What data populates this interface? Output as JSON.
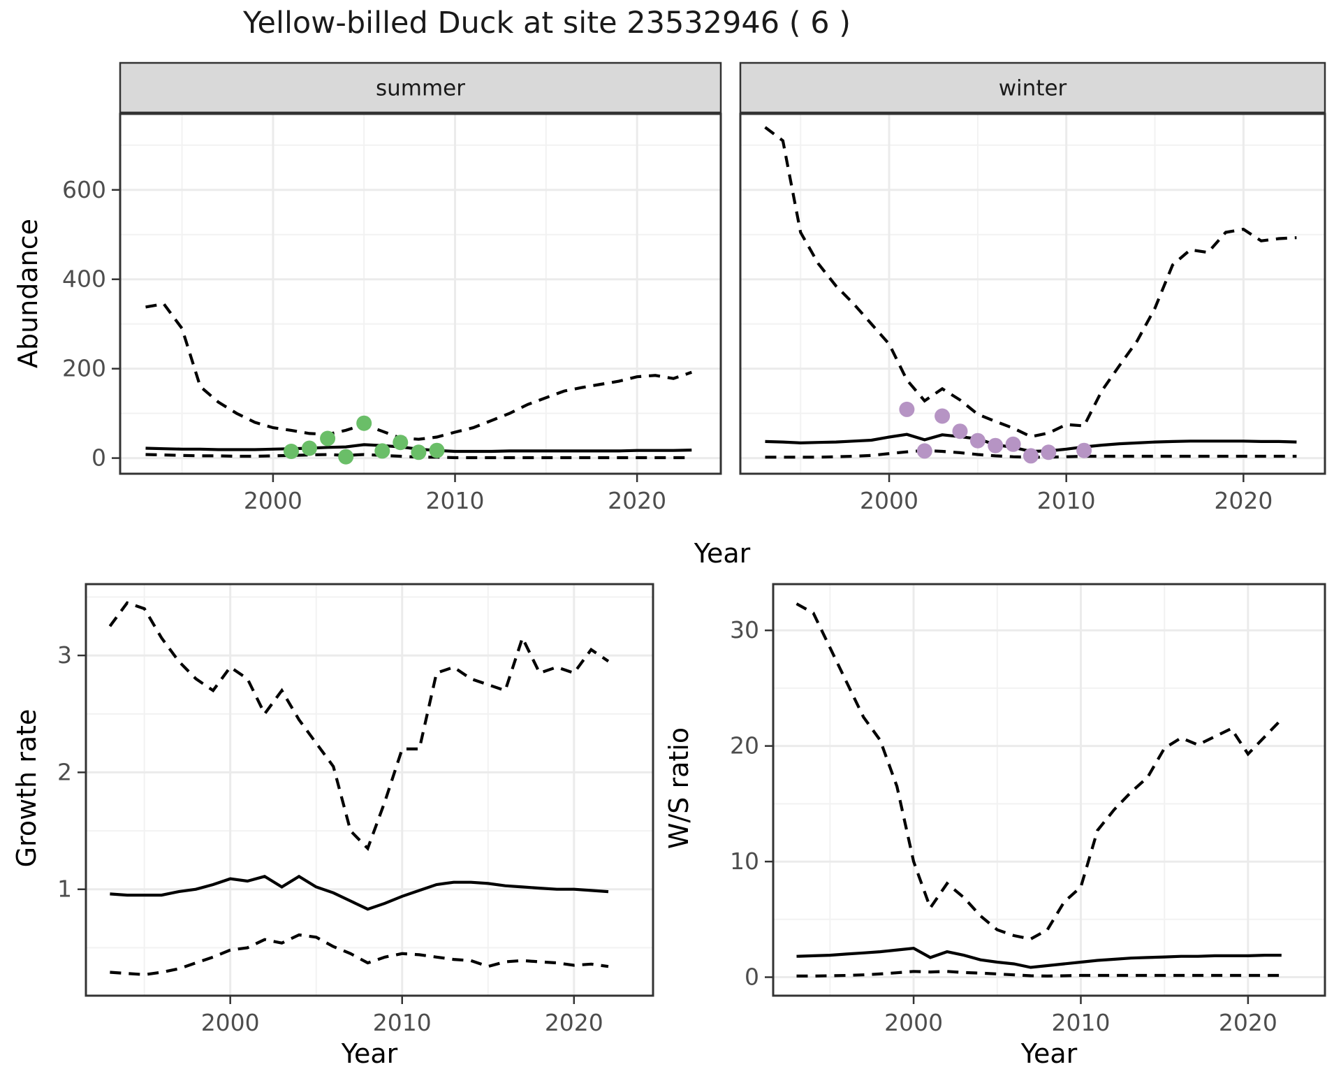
{
  "title": "Yellow-billed Duck at site 23532946 ( 6 )",
  "axis_titles": {
    "abundance_y": "Abundance",
    "top_x": "Year",
    "growth_y": "Growth rate",
    "growth_x": "Year",
    "ws_y": "W/S ratio",
    "ws_x": "Year"
  },
  "colors": {
    "summer_points": "#6ABE68",
    "winter_points": "#B694C4",
    "line": "#000000",
    "grid_major": "#EBEBEB",
    "grid_minor": "#F2F2F2",
    "panel_border": "#333333",
    "strip_fill": "#D9D9D9",
    "strip_text": "#1A1A1A",
    "tick_text": "#4D4D4D",
    "background": "#FFFFFF"
  },
  "chart_data": [
    {
      "id": "abundance-summer",
      "type": "line",
      "facet_label": "summer",
      "ylabel": "Abundance",
      "xlabel": "Year",
      "x_range": [
        1991.6,
        2024.6
      ],
      "y_range": [
        -35,
        770
      ],
      "x_ticks": [
        2000,
        2010,
        2020
      ],
      "x_minor": [
        1995,
        2005,
        2015
      ],
      "y_ticks": [
        0,
        200,
        400,
        600
      ],
      "y_minor": [
        100,
        300,
        500,
        700
      ],
      "show_y_labels": true,
      "years": [
        1993,
        1994,
        1995,
        1996,
        1997,
        1998,
        1999,
        2000,
        2001,
        2002,
        2003,
        2004,
        2005,
        2006,
        2007,
        2008,
        2009,
        2010,
        2011,
        2012,
        2013,
        2014,
        2015,
        2016,
        2017,
        2018,
        2019,
        2020,
        2021,
        2022,
        2023
      ],
      "series": [
        {
          "name": "upper-ci",
          "style": "dashed",
          "values": [
            338,
            345,
            290,
            160,
            125,
            100,
            80,
            68,
            62,
            55,
            53,
            62,
            75,
            60,
            45,
            42,
            47,
            58,
            68,
            84,
            100,
            120,
            135,
            150,
            158,
            165,
            172,
            182,
            185,
            178,
            192
          ]
        },
        {
          "name": "lower-ci",
          "style": "dashed",
          "values": [
            8,
            7,
            6,
            5,
            5,
            4,
            4,
            5,
            6,
            7,
            8,
            6,
            8,
            6,
            4,
            2,
            2,
            1,
            1,
            1,
            1,
            1,
            1,
            1,
            1,
            1,
            1,
            1,
            1,
            1,
            1
          ]
        },
        {
          "name": "median",
          "style": "solid",
          "values": [
            22,
            21,
            20,
            20,
            19,
            19,
            19,
            20,
            21,
            22,
            24,
            25,
            30,
            28,
            25,
            20,
            17,
            15,
            15,
            15,
            16,
            16,
            16,
            16,
            16,
            16,
            16,
            17,
            17,
            17,
            18
          ]
        }
      ],
      "points": {
        "name": "observed-summer",
        "color_key": "summer_points",
        "years": [
          2001,
          2002,
          2003,
          2004,
          2005,
          2006,
          2007,
          2008,
          2009
        ],
        "values": [
          15,
          22,
          44,
          3,
          78,
          16,
          35,
          13,
          17
        ]
      }
    },
    {
      "id": "abundance-winter",
      "type": "line",
      "facet_label": "winter",
      "ylabel": "Abundance",
      "xlabel": "Year",
      "x_range": [
        1991.6,
        2024.6
      ],
      "y_range": [
        -35,
        770
      ],
      "x_ticks": [
        2000,
        2010,
        2020
      ],
      "x_minor": [
        1995,
        2005,
        2015
      ],
      "y_ticks": [
        0,
        200,
        400,
        600
      ],
      "y_minor": [
        100,
        300,
        500,
        700
      ],
      "show_y_labels": false,
      "years": [
        1993,
        1994,
        1995,
        1996,
        1997,
        1998,
        1999,
        2000,
        2001,
        2002,
        2003,
        2004,
        2005,
        2006,
        2007,
        2008,
        2009,
        2010,
        2011,
        2012,
        2013,
        2014,
        2015,
        2016,
        2017,
        2018,
        2019,
        2020,
        2021,
        2022,
        2023
      ],
      "series": [
        {
          "name": "upper-ci",
          "style": "dashed",
          "values": [
            740,
            710,
            505,
            435,
            385,
            345,
            300,
            255,
            175,
            128,
            155,
            130,
            98,
            82,
            67,
            48,
            56,
            75,
            72,
            150,
            207,
            262,
            335,
            432,
            466,
            460,
            505,
            512,
            486,
            491,
            493
          ]
        },
        {
          "name": "lower-ci",
          "style": "dashed",
          "values": [
            2,
            2,
            2,
            2,
            3,
            4,
            6,
            10,
            14,
            17,
            15,
            12,
            8,
            5,
            3,
            2,
            2,
            3,
            4,
            4,
            4,
            4,
            4,
            4,
            4,
            4,
            4,
            4,
            4,
            4,
            4
          ]
        },
        {
          "name": "median",
          "style": "solid",
          "values": [
            37,
            36,
            34,
            35,
            36,
            38,
            40,
            47,
            53,
            41,
            52,
            48,
            43,
            30,
            24,
            15,
            16,
            20,
            25,
            29,
            32,
            34,
            36,
            37,
            38,
            38,
            38,
            38,
            37,
            37,
            36
          ]
        }
      ],
      "points": {
        "name": "observed-winter",
        "color_key": "winter_points",
        "years": [
          2001,
          2002,
          2003,
          2004,
          2005,
          2006,
          2007,
          2008,
          2009,
          2011
        ],
        "values": [
          109,
          16,
          94,
          60,
          39,
          28,
          31,
          5,
          13,
          17
        ]
      }
    },
    {
      "id": "growth-rate",
      "type": "line",
      "facet_label": null,
      "ylabel": "Growth rate",
      "xlabel": "Year",
      "x_range": [
        1991.6,
        2024.6
      ],
      "y_range": [
        0.09,
        3.61
      ],
      "x_ticks": [
        2000,
        2010,
        2020
      ],
      "x_minor": [
        1995,
        2005,
        2015
      ],
      "y_ticks": [
        1,
        2,
        3
      ],
      "y_minor": [
        0.5,
        1.5,
        2.5,
        3.5
      ],
      "show_y_labels": true,
      "years": [
        1993,
        1994,
        1995,
        1996,
        1997,
        1998,
        1999,
        2000,
        2001,
        2002,
        2003,
        2004,
        2005,
        2006,
        2007,
        2008,
        2009,
        2010,
        2011,
        2012,
        2013,
        2014,
        2015,
        2016,
        2017,
        2018,
        2019,
        2020,
        2021,
        2022
      ],
      "series": [
        {
          "name": "upper-ci",
          "style": "dashed",
          "values": [
            3.25,
            3.45,
            3.4,
            3.15,
            2.95,
            2.8,
            2.7,
            2.9,
            2.8,
            2.5,
            2.7,
            2.45,
            2.25,
            2.05,
            1.5,
            1.35,
            1.75,
            2.2,
            2.2,
            2.85,
            2.9,
            2.8,
            2.75,
            2.7,
            3.15,
            2.85,
            2.9,
            2.85,
            3.05,
            2.95
          ]
        },
        {
          "name": "lower-ci",
          "style": "dashed",
          "values": [
            0.29,
            0.28,
            0.27,
            0.29,
            0.32,
            0.37,
            0.42,
            0.48,
            0.5,
            0.57,
            0.54,
            0.61,
            0.59,
            0.51,
            0.45,
            0.37,
            0.42,
            0.45,
            0.44,
            0.42,
            0.4,
            0.39,
            0.34,
            0.38,
            0.39,
            0.38,
            0.37,
            0.35,
            0.36,
            0.34
          ]
        },
        {
          "name": "median",
          "style": "solid",
          "values": [
            0.96,
            0.95,
            0.95,
            0.95,
            0.98,
            1.0,
            1.04,
            1.09,
            1.07,
            1.11,
            1.02,
            1.11,
            1.02,
            0.97,
            0.9,
            0.83,
            0.88,
            0.94,
            0.99,
            1.04,
            1.06,
            1.06,
            1.05,
            1.03,
            1.02,
            1.01,
            1.0,
            1.0,
            0.99,
            0.98
          ]
        }
      ],
      "points": null
    },
    {
      "id": "ws-ratio",
      "type": "line",
      "facet_label": null,
      "ylabel": "W/S ratio",
      "xlabel": "Year",
      "x_range": [
        1991.6,
        2024.6
      ],
      "y_range": [
        -1.6,
        34.0
      ],
      "x_ticks": [
        2000,
        2010,
        2020
      ],
      "x_minor": [
        1995,
        2005,
        2015
      ],
      "y_ticks": [
        0,
        10,
        20,
        30
      ],
      "y_minor": [
        5,
        15,
        25
      ],
      "show_y_labels": true,
      "years": [
        1993,
        1994,
        1995,
        1996,
        1997,
        1998,
        1999,
        2000,
        2001,
        2002,
        2003,
        2004,
        2005,
        2006,
        2007,
        2008,
        2009,
        2010,
        2011,
        2012,
        2013,
        2014,
        2015,
        2016,
        2017,
        2018,
        2019,
        2020,
        2021,
        2022
      ],
      "series": [
        {
          "name": "upper-ci",
          "style": "dashed",
          "values": [
            32.3,
            31.5,
            28.5,
            25.5,
            22.5,
            20.5,
            16.5,
            10.0,
            6.0,
            8.1,
            6.9,
            5.3,
            4.1,
            3.6,
            3.3,
            4.1,
            6.5,
            7.8,
            12.7,
            14.5,
            16.0,
            17.3,
            19.8,
            20.7,
            20.1,
            20.8,
            21.5,
            19.3,
            20.8,
            22.3
          ]
        },
        {
          "name": "lower-ci",
          "style": "dashed",
          "values": [
            0.1,
            0.1,
            0.12,
            0.15,
            0.2,
            0.28,
            0.38,
            0.5,
            0.45,
            0.5,
            0.4,
            0.35,
            0.28,
            0.2,
            0.12,
            0.1,
            0.12,
            0.15,
            0.15,
            0.15,
            0.15,
            0.15,
            0.15,
            0.15,
            0.15,
            0.15,
            0.15,
            0.15,
            0.15,
            0.15
          ]
        },
        {
          "name": "median",
          "style": "solid",
          "values": [
            1.8,
            1.85,
            1.9,
            2.0,
            2.1,
            2.2,
            2.35,
            2.5,
            1.7,
            2.2,
            1.9,
            1.5,
            1.3,
            1.15,
            0.85,
            1.0,
            1.15,
            1.3,
            1.45,
            1.55,
            1.65,
            1.7,
            1.75,
            1.8,
            1.8,
            1.85,
            1.85,
            1.85,
            1.9,
            1.9
          ]
        }
      ],
      "points": null
    }
  ]
}
